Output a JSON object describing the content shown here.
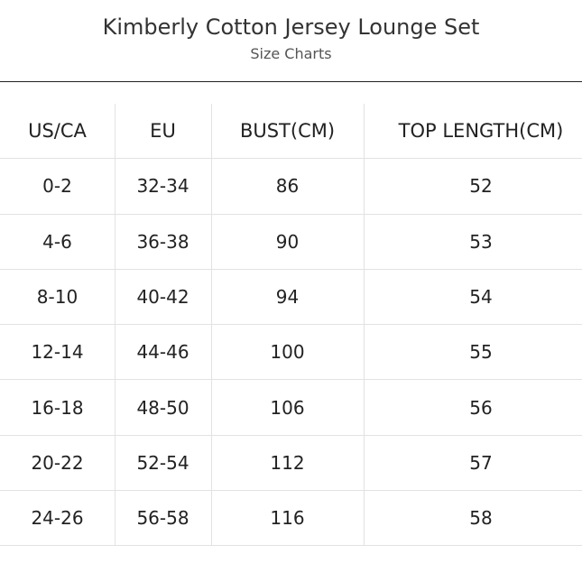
{
  "header": {
    "title": "Kimberly Cotton Jersey Lounge Set",
    "subtitle": "Size Charts"
  },
  "table": {
    "columns": [
      "US/CA",
      "EU",
      "BUST(CM)",
      "TOP LENGTH(CM)"
    ],
    "rows": [
      [
        "0-2",
        "32-34",
        "86",
        "52"
      ],
      [
        "4-6",
        "36-38",
        "90",
        "53"
      ],
      [
        "8-10",
        "40-42",
        "94",
        "54"
      ],
      [
        "12-14",
        "44-46",
        "100",
        "55"
      ],
      [
        "16-18",
        "48-50",
        "106",
        "56"
      ],
      [
        "20-22",
        "52-54",
        "112",
        "57"
      ],
      [
        "24-26",
        "56-58",
        "116",
        "58"
      ]
    ]
  }
}
